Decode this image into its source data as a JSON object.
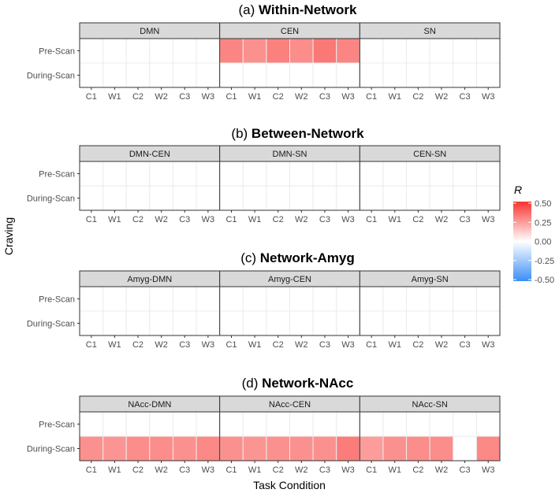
{
  "chart_data": {
    "type": "heatmap",
    "ylabel": "Craving",
    "xlabel": "Task Condition",
    "x_categories": [
      "C1",
      "W1",
      "C2",
      "W2",
      "C3",
      "W3"
    ],
    "y_categories": [
      "Pre-Scan",
      "During-Scan"
    ],
    "legend": {
      "title": "R",
      "ticks": [
        "0.50",
        "0.25",
        "0.00",
        "-0.25",
        "-0.50"
      ],
      "range": [
        -0.5,
        0.5
      ],
      "low_color": "#3a8ef6",
      "mid_color": "#ffffff",
      "high_color": "#f8332f"
    },
    "panels": [
      {
        "title_prefix": "(a) ",
        "title_bold": "Within-Network",
        "facets": [
          {
            "label": "DMN",
            "pre": [
              0,
              0,
              0,
              0,
              0,
              0
            ],
            "during": [
              0,
              0,
              0,
              0,
              0,
              0
            ]
          },
          {
            "label": "CEN",
            "pre": [
              0.3,
              0.27,
              0.31,
              0.28,
              0.33,
              0.3
            ],
            "during": [
              0,
              0,
              0,
              0,
              0,
              0
            ]
          },
          {
            "label": "SN",
            "pre": [
              0,
              0,
              0,
              0,
              0,
              0
            ],
            "during": [
              0,
              0,
              0,
              0,
              0,
              0
            ]
          }
        ]
      },
      {
        "title_prefix": "(b) ",
        "title_bold": "Between-Network",
        "facets": [
          {
            "label": "DMN-CEN",
            "pre": [
              0,
              0,
              0,
              0,
              0,
              0
            ],
            "during": [
              0,
              0,
              0,
              0,
              0,
              0
            ]
          },
          {
            "label": "DMN-SN",
            "pre": [
              0,
              0,
              0,
              0,
              0,
              0
            ],
            "during": [
              0,
              0,
              0,
              0,
              0,
              0
            ]
          },
          {
            "label": "CEN-SN",
            "pre": [
              0,
              0,
              0,
              0,
              0,
              0
            ],
            "during": [
              0,
              0,
              0,
              0,
              0,
              0
            ]
          }
        ]
      },
      {
        "title_prefix": "(c) ",
        "title_bold": "Network-Amyg",
        "facets": [
          {
            "label": "Amyg-DMN",
            "pre": [
              0,
              0,
              0,
              0,
              0,
              0
            ],
            "during": [
              0,
              0,
              0,
              0,
              0,
              0
            ]
          },
          {
            "label": "Amyg-CEN",
            "pre": [
              0,
              0,
              0,
              0,
              0,
              0
            ],
            "during": [
              0,
              0,
              0,
              0,
              0,
              0
            ]
          },
          {
            "label": "Amyg-SN",
            "pre": [
              0,
              0,
              0,
              0,
              0,
              0
            ],
            "during": [
              0,
              0,
              0,
              0,
              0,
              0
            ]
          }
        ]
      },
      {
        "title_prefix": "(d) ",
        "title_bold": "Network-NAcc",
        "facets": [
          {
            "label": "NAcc-DMN",
            "pre": [
              0,
              0,
              0,
              0,
              0,
              0
            ],
            "during": [
              0.27,
              0.26,
              0.28,
              0.28,
              0.27,
              0.29
            ]
          },
          {
            "label": "NAcc-CEN",
            "pre": [
              0,
              0,
              0,
              0,
              0,
              0
            ],
            "during": [
              0.27,
              0.26,
              0.27,
              0.27,
              0.27,
              0.32
            ]
          },
          {
            "label": "NAcc-SN",
            "pre": [
              0,
              0,
              0,
              0,
              0,
              0
            ],
            "during": [
              0.24,
              0.27,
              0.28,
              0.28,
              null,
              0.29
            ]
          }
        ]
      }
    ]
  }
}
